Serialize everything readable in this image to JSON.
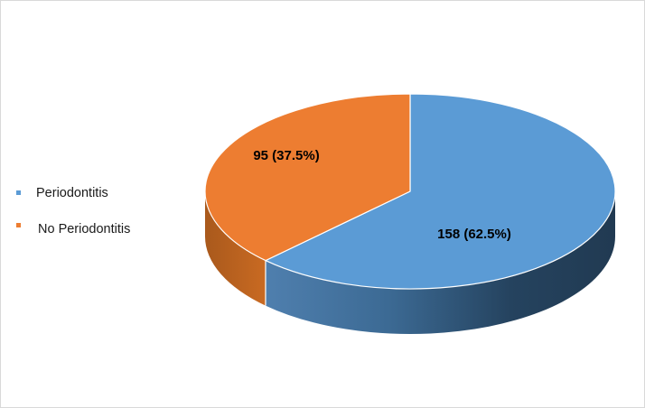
{
  "chart_data": {
    "type": "pie",
    "title": "",
    "is_3d": true,
    "legend_position": "left",
    "slices": [
      {
        "label": "Periodontitis",
        "value": 158,
        "percent": 62.5,
        "data_label": "158 (62.5%)",
        "color": "#5B9BD5",
        "side_color": "#2E4F6E"
      },
      {
        "label": "No Periodontitis",
        "value": 95,
        "percent": 37.5,
        "data_label": "95 (37.5%)",
        "color": "#ED7D31",
        "side_color": "#B4601F"
      }
    ]
  }
}
